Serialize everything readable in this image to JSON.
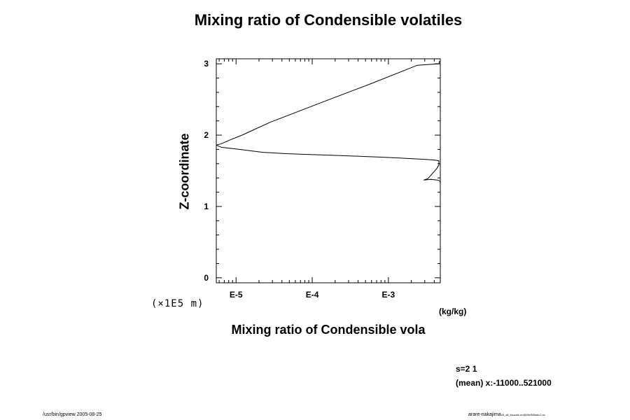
{
  "chart_data": {
    "type": "line",
    "title": "Mixing ratio of Condensible volatiles",
    "xlabel": "Mixing ratio of Condensible vola",
    "ylabel": "Z-coordinate",
    "x_unit": "(kg/kg)",
    "y_scale_note": "(×1E5 m)",
    "x_scale": "log",
    "xlim": [
      5.5e-06,
      0.0048
    ],
    "ylim": [
      -0.07,
      3.07
    ],
    "x_ticks": [
      {
        "value": 1e-05,
        "label": "E-5"
      },
      {
        "value": 0.0001,
        "label": "E-4"
      },
      {
        "value": 0.001,
        "label": "E-3"
      }
    ],
    "y_ticks": [
      {
        "value": 0,
        "label": "0"
      },
      {
        "value": 1,
        "label": "1"
      },
      {
        "value": 2,
        "label": "2"
      },
      {
        "value": 3,
        "label": "3"
      }
    ],
    "grid": false,
    "series": [
      {
        "x": [
          0.0049,
          0.0047,
          0.0044,
          0.0036,
          0.0029,
          0.0033,
          0.0037,
          0.0043,
          0.0046,
          0.0046,
          0.0041,
          0.0031,
          0.0021,
          0.0014,
          0.00086,
          0.0005,
          0.00029,
          0.00016,
          8.6e-05,
          4.5e-05,
          2.2e-05,
          1.1e-05,
          6.4e-06,
          5.5e-06,
          6.4e-06,
          8.2e-06,
          1.2e-05,
          2.8e-05,
          0.00012,
          0.00062,
          0.0024,
          0.0046,
          0.0047
        ],
        "y": [
          1.31,
          1.36,
          1.37,
          1.38,
          1.37,
          1.39,
          1.45,
          1.53,
          1.58,
          1.64,
          1.65,
          1.66,
          1.67,
          1.68,
          1.69,
          1.7,
          1.71,
          1.72,
          1.73,
          1.74,
          1.76,
          1.8,
          1.83,
          1.86,
          1.88,
          1.93,
          2.0,
          2.18,
          2.44,
          2.73,
          2.98,
          3.0,
          3.04
        ]
      }
    ]
  },
  "annotations": {
    "subtitle_line1": "s=2 1",
    "subtitle_line2": "(mean) x:-11000..521000",
    "footer_left": "/usr/bin/gpview 2005-08-25",
    "footer_right_main": "arare-nakajima",
    "footer_right_small": "03_all_ksuzuki.nc@MixRtBasic2.nc"
  }
}
